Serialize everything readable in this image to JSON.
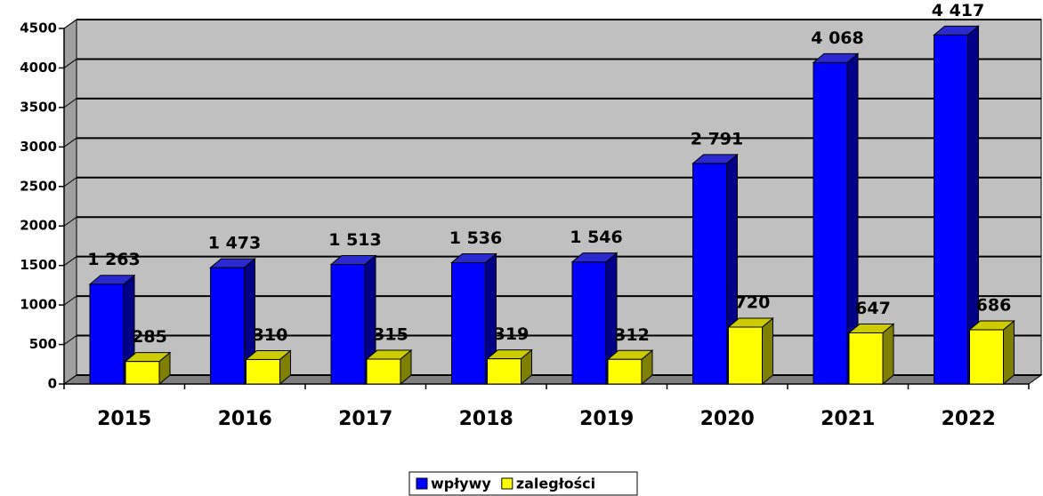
{
  "chart_data": {
    "type": "bar3d",
    "categories": [
      "2015",
      "2016",
      "2017",
      "2018",
      "2019",
      "2020",
      "2021",
      "2022"
    ],
    "series": [
      {
        "name": "wpływy",
        "color": "#0000ff",
        "values": [
          1263,
          1473,
          1513,
          1536,
          1546,
          2791,
          4068,
          4417
        ],
        "value_labels": [
          "1 263",
          "1 473",
          "1 513",
          "1 536",
          "1 546",
          "2 791",
          "4 068",
          "4 417"
        ]
      },
      {
        "name": "zaległości",
        "color": "#ffff00",
        "values": [
          285,
          310,
          315,
          319,
          312,
          720,
          647,
          686
        ]
      }
    ],
    "ylim": [
      0,
      4500
    ],
    "yticks": [
      0,
      500,
      1000,
      1500,
      2000,
      2500,
      3000,
      3500,
      4000,
      4500
    ],
    "grid": true,
    "legend": "bottom"
  }
}
